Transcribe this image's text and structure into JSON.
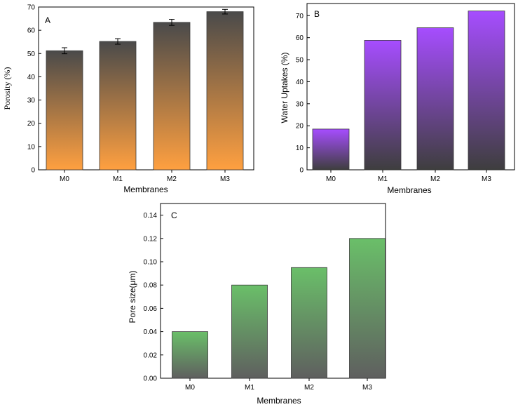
{
  "chart_data": [
    {
      "type": "bar",
      "panel_label": "A",
      "title": "",
      "xlabel": "Membranes",
      "ylabel": "Porosity (%)",
      "categories": [
        "M0",
        "M1",
        "M2",
        "M3"
      ],
      "values": [
        51.2,
        55.2,
        63.4,
        68.0
      ],
      "errors": [
        1.3,
        1.2,
        1.3,
        1.0
      ],
      "ylim": [
        0,
        70
      ],
      "yticks": [
        0,
        10,
        20,
        30,
        40,
        50,
        60,
        70
      ],
      "ytick_labels": [
        "0",
        "10",
        "20",
        "30",
        "40",
        "50",
        "60",
        "70"
      ],
      "gradient": {
        "top": "#4a4a4a",
        "bottom": "#ffa040"
      },
      "grid": false
    },
    {
      "type": "bar",
      "panel_label": "B",
      "title": "",
      "xlabel": "Membranes",
      "ylabel": "Water Uptakes (%)",
      "categories": [
        "M0",
        "M1",
        "M2",
        "M3"
      ],
      "values": [
        18.5,
        58.8,
        64.5,
        72.1
      ],
      "ylim": [
        0,
        75.5
      ],
      "yticks": [
        0,
        10,
        20,
        30,
        40,
        50,
        60,
        70
      ],
      "ytick_labels": [
        "0",
        "10",
        "20",
        "30",
        "40",
        "50",
        "60",
        "70"
      ],
      "gradient": {
        "top": "#a64dff",
        "bottom": "#3e3e3e"
      },
      "grid": false
    },
    {
      "type": "bar",
      "panel_label": "C",
      "title": "",
      "xlabel": "Membranes",
      "ylabel": "Pore size(μm)",
      "categories": [
        "M0",
        "M1",
        "M2",
        "M3"
      ],
      "values": [
        0.04,
        0.08,
        0.095,
        0.12
      ],
      "ylim": [
        0,
        0.15
      ],
      "yticks": [
        0,
        0.02,
        0.04,
        0.06,
        0.08,
        0.1,
        0.12,
        0.14
      ],
      "ytick_labels": [
        "0.00",
        "0.02",
        "0.04",
        "0.06",
        "0.08",
        "0.10",
        "0.12",
        "0.14"
      ],
      "gradient": {
        "top": "#6abf69",
        "bottom": "#5f5f5f"
      },
      "grid": false
    }
  ]
}
